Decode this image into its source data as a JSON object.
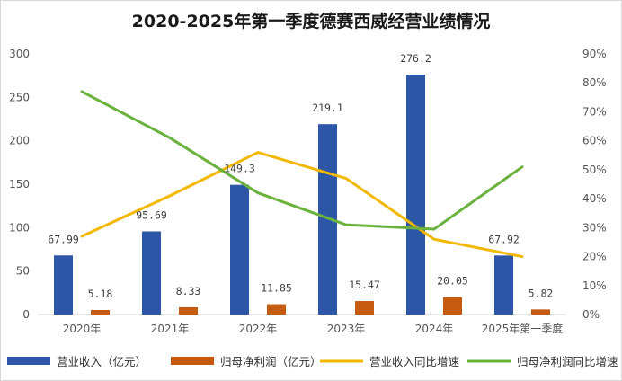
{
  "chart_data": {
    "type": "bar",
    "title": "2020-2025年第一季度德赛西威经营业绩情况",
    "categories": [
      "2020年",
      "2021年",
      "2022年",
      "2023年",
      "2024年",
      "2025年第一季度"
    ],
    "y_left": {
      "lim": [
        0,
        300
      ],
      "ticks": [
        "0",
        "50",
        "100",
        "150",
        "200",
        "250",
        "300"
      ]
    },
    "y_right": {
      "lim": [
        0,
        90
      ],
      "ticks": [
        "0%",
        "10%",
        "20%",
        "30%",
        "40%",
        "50%",
        "60%",
        "70%",
        "80%",
        "90%"
      ]
    },
    "grid": false,
    "legend_position": "bottom",
    "series": [
      {
        "name": "营业收入（亿元）",
        "type": "bar",
        "axis": "left",
        "color": "#2e56a6",
        "values": [
          67.99,
          95.69,
          149.3,
          219.1,
          276.2,
          67.92
        ],
        "labels": [
          "67.99",
          "95.69",
          "149.3",
          "219.1",
          "276.2",
          "67.92"
        ]
      },
      {
        "name": "归母净利润（亿元）",
        "type": "bar",
        "axis": "left",
        "color": "#c55a11",
        "values": [
          5.18,
          8.33,
          11.85,
          15.47,
          20.05,
          5.82
        ],
        "labels": [
          "5.18",
          "8.33",
          "11.85",
          "15.47",
          "20.05",
          "5.82"
        ]
      },
      {
        "name": "营业收入同比增速",
        "type": "line",
        "axis": "right",
        "color": "#f2b800",
        "values": [
          27,
          41,
          56,
          47,
          26,
          20
        ]
      },
      {
        "name": "归母净利润同比增速",
        "type": "line",
        "axis": "right",
        "color": "#6ab23e",
        "values": [
          77,
          61,
          42,
          31,
          29.5,
          51
        ]
      }
    ]
  }
}
